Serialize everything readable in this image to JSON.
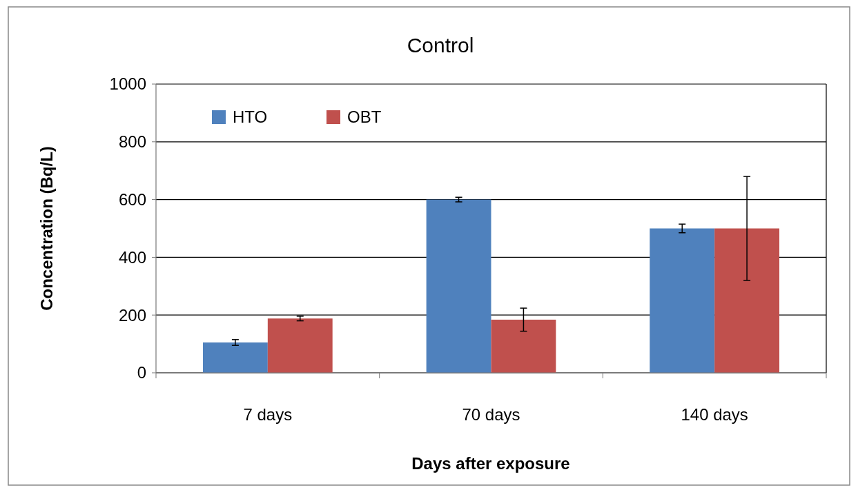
{
  "chart_data": {
    "type": "bar",
    "title": "Control",
    "xlabel": "Days after exposure",
    "ylabel": "Concentration (Bq/L)",
    "categories": [
      "7 days",
      "70 days",
      "140 days"
    ],
    "series": [
      {
        "name": "HTO",
        "color": "#4f81bd",
        "values": [
          105,
          600,
          500
        ],
        "errors": [
          10,
          8,
          15
        ]
      },
      {
        "name": "OBT",
        "color": "#c0504d",
        "values": [
          188,
          184,
          500
        ],
        "errors": [
          8,
          40,
          180
        ]
      }
    ],
    "ylim": [
      0,
      1000
    ],
    "yticks": [
      0,
      200,
      400,
      600,
      800,
      1000
    ],
    "grid": "y",
    "legend": "top left"
  }
}
